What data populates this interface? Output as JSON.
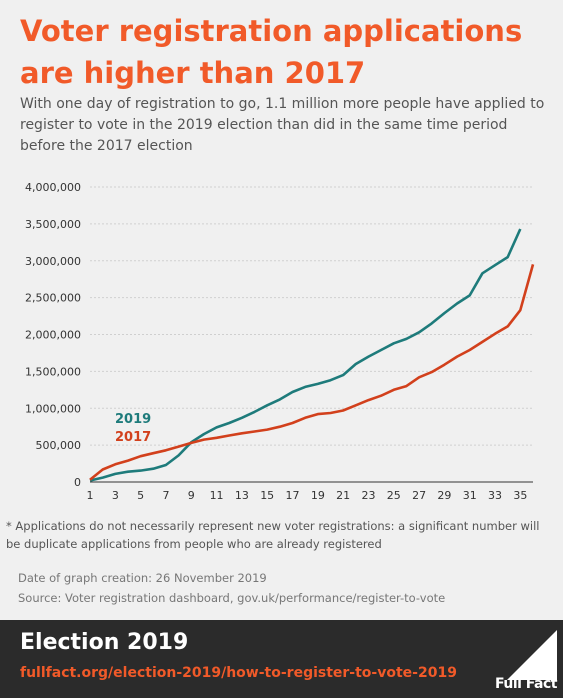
{
  "header": {
    "title": "Voter registration applications are higher than 2017",
    "subtitle": "With one day of registration to go, 1.1 million more people have applied to register to vote in the 2019 election than did in the same time period before the 2017 election"
  },
  "colors": {
    "accent": "#f15a29",
    "series_2019": "#1e7b7b",
    "series_2017": "#d2401c",
    "footer_bg": "#2b2b2b"
  },
  "chart_data": {
    "type": "line",
    "title": "",
    "xlabel": "",
    "ylabel": "",
    "ylim": [
      0,
      4000000
    ],
    "xlim": [
      1,
      36
    ],
    "yticks": [
      "0",
      "500,000",
      "1,000,000",
      "1,500,000",
      "2,000,000",
      "2,500,000",
      "3,000,000",
      "3,500,000",
      "4,000,000"
    ],
    "xticks": [
      "1",
      "3",
      "5",
      "7",
      "9",
      "11",
      "13",
      "15",
      "17",
      "19",
      "21",
      "23",
      "25",
      "27",
      "29",
      "31",
      "33",
      "35"
    ],
    "legend": "inside-left",
    "grid": true,
    "series": [
      {
        "name": "2019",
        "x": [
          1,
          2,
          3,
          4,
          5,
          6,
          7,
          8,
          9,
          10,
          11,
          12,
          13,
          14,
          15,
          16,
          17,
          18,
          19,
          20,
          21,
          22,
          23,
          24,
          25,
          26,
          27,
          28,
          29,
          30,
          31,
          32,
          33,
          34,
          35
        ],
        "values": [
          20000,
          60000,
          110000,
          140000,
          155000,
          180000,
          230000,
          360000,
          540000,
          650000,
          740000,
          800000,
          870000,
          950000,
          1040000,
          1120000,
          1220000,
          1290000,
          1330000,
          1380000,
          1450000,
          1600000,
          1700000,
          1790000,
          1880000,
          1940000,
          2030000,
          2150000,
          2290000,
          2420000,
          2530000,
          2830000,
          2940000,
          3050000,
          3430000
        ]
      },
      {
        "name": "2017",
        "x": [
          1,
          2,
          3,
          4,
          5,
          6,
          7,
          8,
          9,
          10,
          11,
          12,
          13,
          14,
          15,
          16,
          17,
          18,
          19,
          20,
          21,
          22,
          23,
          24,
          25,
          26,
          27,
          28,
          29,
          30,
          31,
          32,
          33,
          34,
          35,
          36
        ],
        "values": [
          30000,
          170000,
          240000,
          290000,
          350000,
          390000,
          430000,
          480000,
          530000,
          575000,
          600000,
          630000,
          660000,
          685000,
          710000,
          750000,
          800000,
          870000,
          920000,
          935000,
          970000,
          1040000,
          1110000,
          1170000,
          1250000,
          1300000,
          1420000,
          1490000,
          1590000,
          1700000,
          1790000,
          1900000,
          2010000,
          2110000,
          2330000,
          2950000
        ]
      }
    ]
  },
  "footnote": "* Applications do not necessarily represent new voter registrations: a significant number will be duplicate applications from people who are already registered",
  "meta": {
    "date": "Date of graph creation: 26 November 2019",
    "source": "Source: Voter registration dashboard, gov.uk/performance/register-to-vote"
  },
  "footer": {
    "title": "Election 2019",
    "link": "fullfact.org/election-2019/how-to-register-to-vote-2019",
    "logo": "Full Fact"
  }
}
